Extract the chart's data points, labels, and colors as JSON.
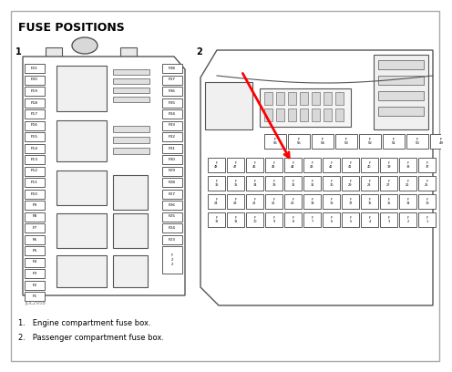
{
  "title": "FUSE POSITIONS",
  "bg_color": "#ffffff",
  "outer_border_color": "#aaaaaa",
  "box_color": "#555555",
  "fuse_fill": "#ffffff",
  "fuse_text_color": "#111111",
  "relay_fill": "#f0f0f0",
  "footnote1": "1.   Engine compartment fuse box.",
  "footnote2": "2.   Passenger compartment fuse box.",
  "watermark": "JOL2958",
  "left_fuses_box1": [
    "F21",
    "F20",
    "F19",
    "F18",
    "F17",
    "F16",
    "F15",
    "F14",
    "F13",
    "F12",
    "F11",
    "F10",
    "F9",
    "F8",
    "F7",
    "F6",
    "F5",
    "F4",
    "F3",
    "F2",
    "F1"
  ],
  "right_fuses_box1": [
    "F38",
    "F37",
    "F36",
    "F35",
    "F34",
    "F33",
    "F32",
    "F31",
    "F30",
    "F29",
    "F28",
    "F27",
    "F26",
    "F25",
    "F24",
    "F23"
  ],
  "box2_row0": [
    "56",
    "55",
    "54",
    "53",
    "52",
    "51",
    "50",
    "49"
  ],
  "box2_rows": [
    [
      "48",
      "47",
      "46",
      "45",
      "44",
      "43",
      "42",
      "41",
      "40",
      "39",
      "38",
      "37"
    ],
    [
      "36",
      "35",
      "34",
      "33",
      "32",
      "31",
      "30",
      "29",
      "28",
      "27",
      "26",
      "25"
    ],
    [
      "24",
      "23",
      "22",
      "21",
      "20",
      "19",
      "18",
      "17",
      "16",
      "15",
      "14",
      "13"
    ],
    [
      "12",
      "11",
      "10",
      "9",
      "8",
      "7",
      "6",
      "5",
      "4",
      "3",
      "2",
      "1"
    ]
  ]
}
